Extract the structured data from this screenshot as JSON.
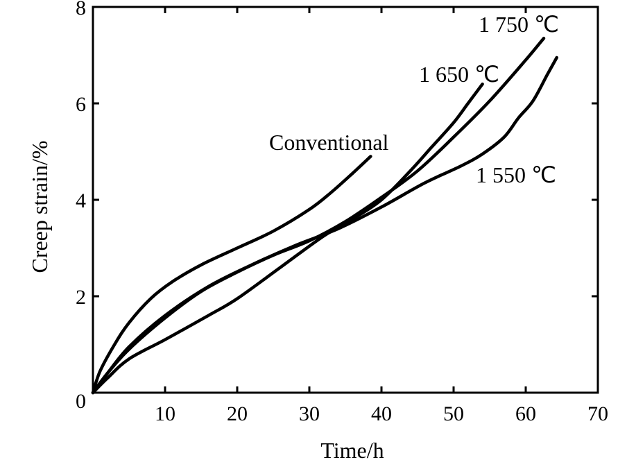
{
  "chart_data": {
    "type": "line",
    "title": "",
    "xlabel": "Time/h",
    "ylabel": "Creep strain/%",
    "xlim": [
      0,
      70
    ],
    "ylim": [
      0,
      8
    ],
    "x_ticks": [
      10,
      20,
      30,
      40,
      50,
      60,
      70
    ],
    "y_ticks": [
      2,
      4,
      6,
      8
    ],
    "origin_label": "0",
    "grid": false,
    "legend": "none (series labeled directly on curves)",
    "series": [
      {
        "name": "Conventional",
        "x": [
          0,
          1,
          3,
          5,
          8,
          11,
          15,
          20,
          25,
          30,
          33,
          36,
          38.5
        ],
        "y": [
          0,
          0.45,
          1.0,
          1.45,
          1.95,
          2.3,
          2.65,
          3.0,
          3.35,
          3.8,
          4.15,
          4.55,
          4.9
        ]
      },
      {
        "name": "1 550 ℃",
        "x": [
          0,
          2,
          5,
          10,
          16,
          22,
          28,
          34,
          40,
          46,
          51,
          54,
          57,
          59,
          61,
          63,
          64.3
        ],
        "y": [
          0,
          0.4,
          0.95,
          1.6,
          2.2,
          2.65,
          3.05,
          3.4,
          3.85,
          4.35,
          4.7,
          4.95,
          5.3,
          5.7,
          6.05,
          6.6,
          6.95
        ]
      },
      {
        "name": "1 650 ℃",
        "x": [
          0,
          2,
          5,
          10,
          16,
          20,
          26,
          32,
          36,
          40,
          44,
          47,
          50,
          52,
          54
        ],
        "y": [
          0,
          0.3,
          0.7,
          1.1,
          1.6,
          1.95,
          2.6,
          3.25,
          3.6,
          4.0,
          4.6,
          5.1,
          5.6,
          6.0,
          6.4
        ]
      },
      {
        "name": "1 750 ℃",
        "x": [
          0,
          2,
          5,
          10,
          15,
          20,
          25,
          30,
          35,
          40,
          45,
          50,
          55,
          60,
          62.5
        ],
        "y": [
          0,
          0.4,
          0.9,
          1.55,
          2.1,
          2.5,
          2.85,
          3.15,
          3.55,
          4.05,
          4.6,
          5.3,
          6.05,
          6.9,
          7.35
        ]
      }
    ],
    "annotations": [
      {
        "text": "Conventional",
        "series": "Conventional"
      },
      {
        "text": "1 550 ℃",
        "series": "1 550 ℃"
      },
      {
        "text": "1 650 ℃",
        "series": "1 650 ℃"
      },
      {
        "text": "1 750 ℃",
        "series": "1 750 ℃"
      }
    ],
    "line_color": "#000000"
  }
}
